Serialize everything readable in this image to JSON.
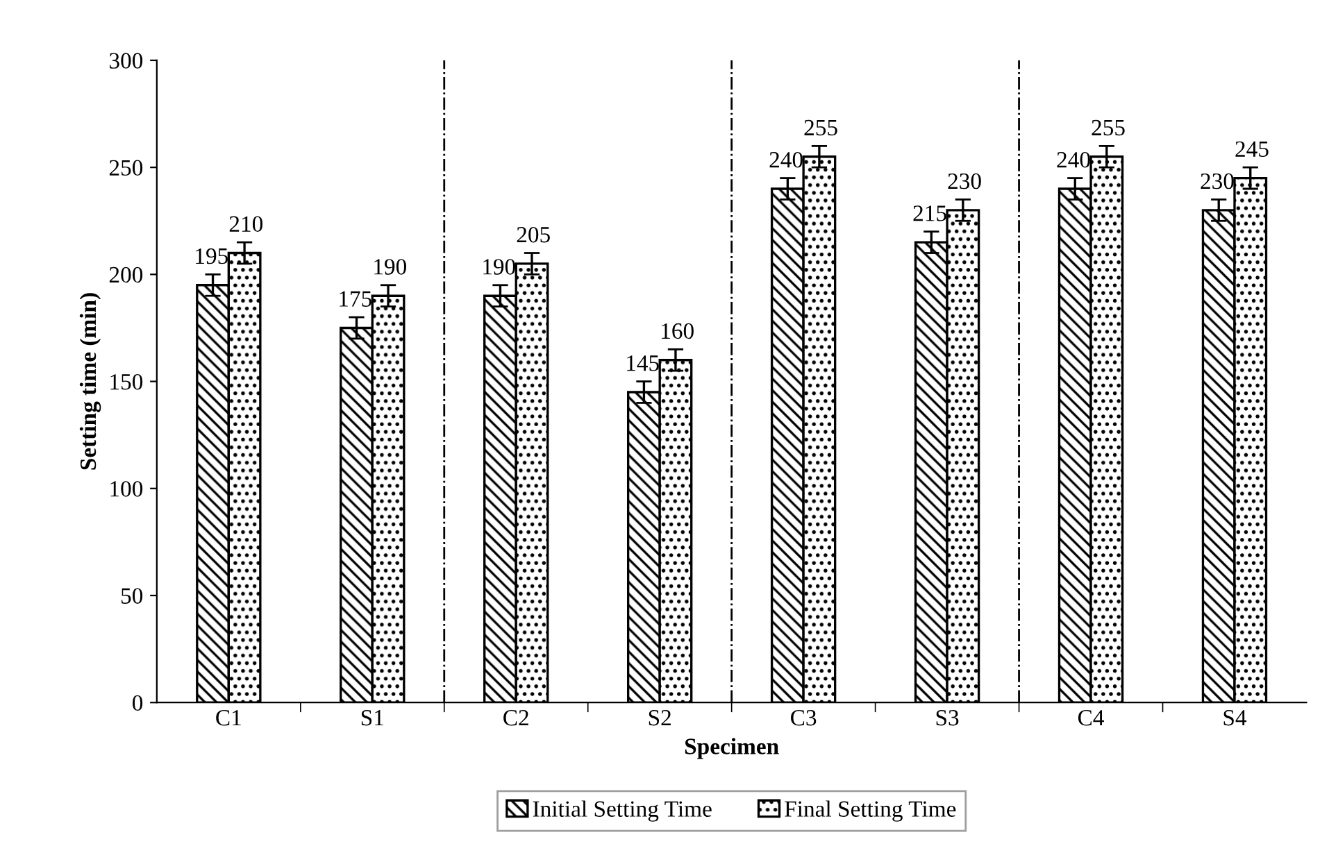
{
  "chart_data": {
    "type": "bar",
    "xlabel": "Specimen",
    "ylabel": "Setting time (min)",
    "categories": [
      "C1",
      "S1",
      "C2",
      "S2",
      "C3",
      "S3",
      "C4",
      "S4"
    ],
    "series": [
      {
        "name": "Initial Setting Time",
        "color": "#000000",
        "values": [
          195,
          175,
          190,
          145,
          240,
          215,
          240,
          230
        ],
        "errors": [
          5,
          5,
          5,
          5,
          5,
          5,
          5,
          5
        ]
      },
      {
        "name": "Final Setting Time",
        "color": "#000000",
        "values": [
          210,
          190,
          205,
          160,
          255,
          230,
          255,
          245
        ],
        "errors": [
          5,
          5,
          5,
          5,
          5,
          5,
          5,
          5
        ]
      }
    ],
    "ylim": [
      0,
      300
    ],
    "yticks": [
      0,
      50,
      100,
      150,
      200,
      250,
      300
    ],
    "data_labels": true,
    "grid": false,
    "legend": "bottom"
  }
}
